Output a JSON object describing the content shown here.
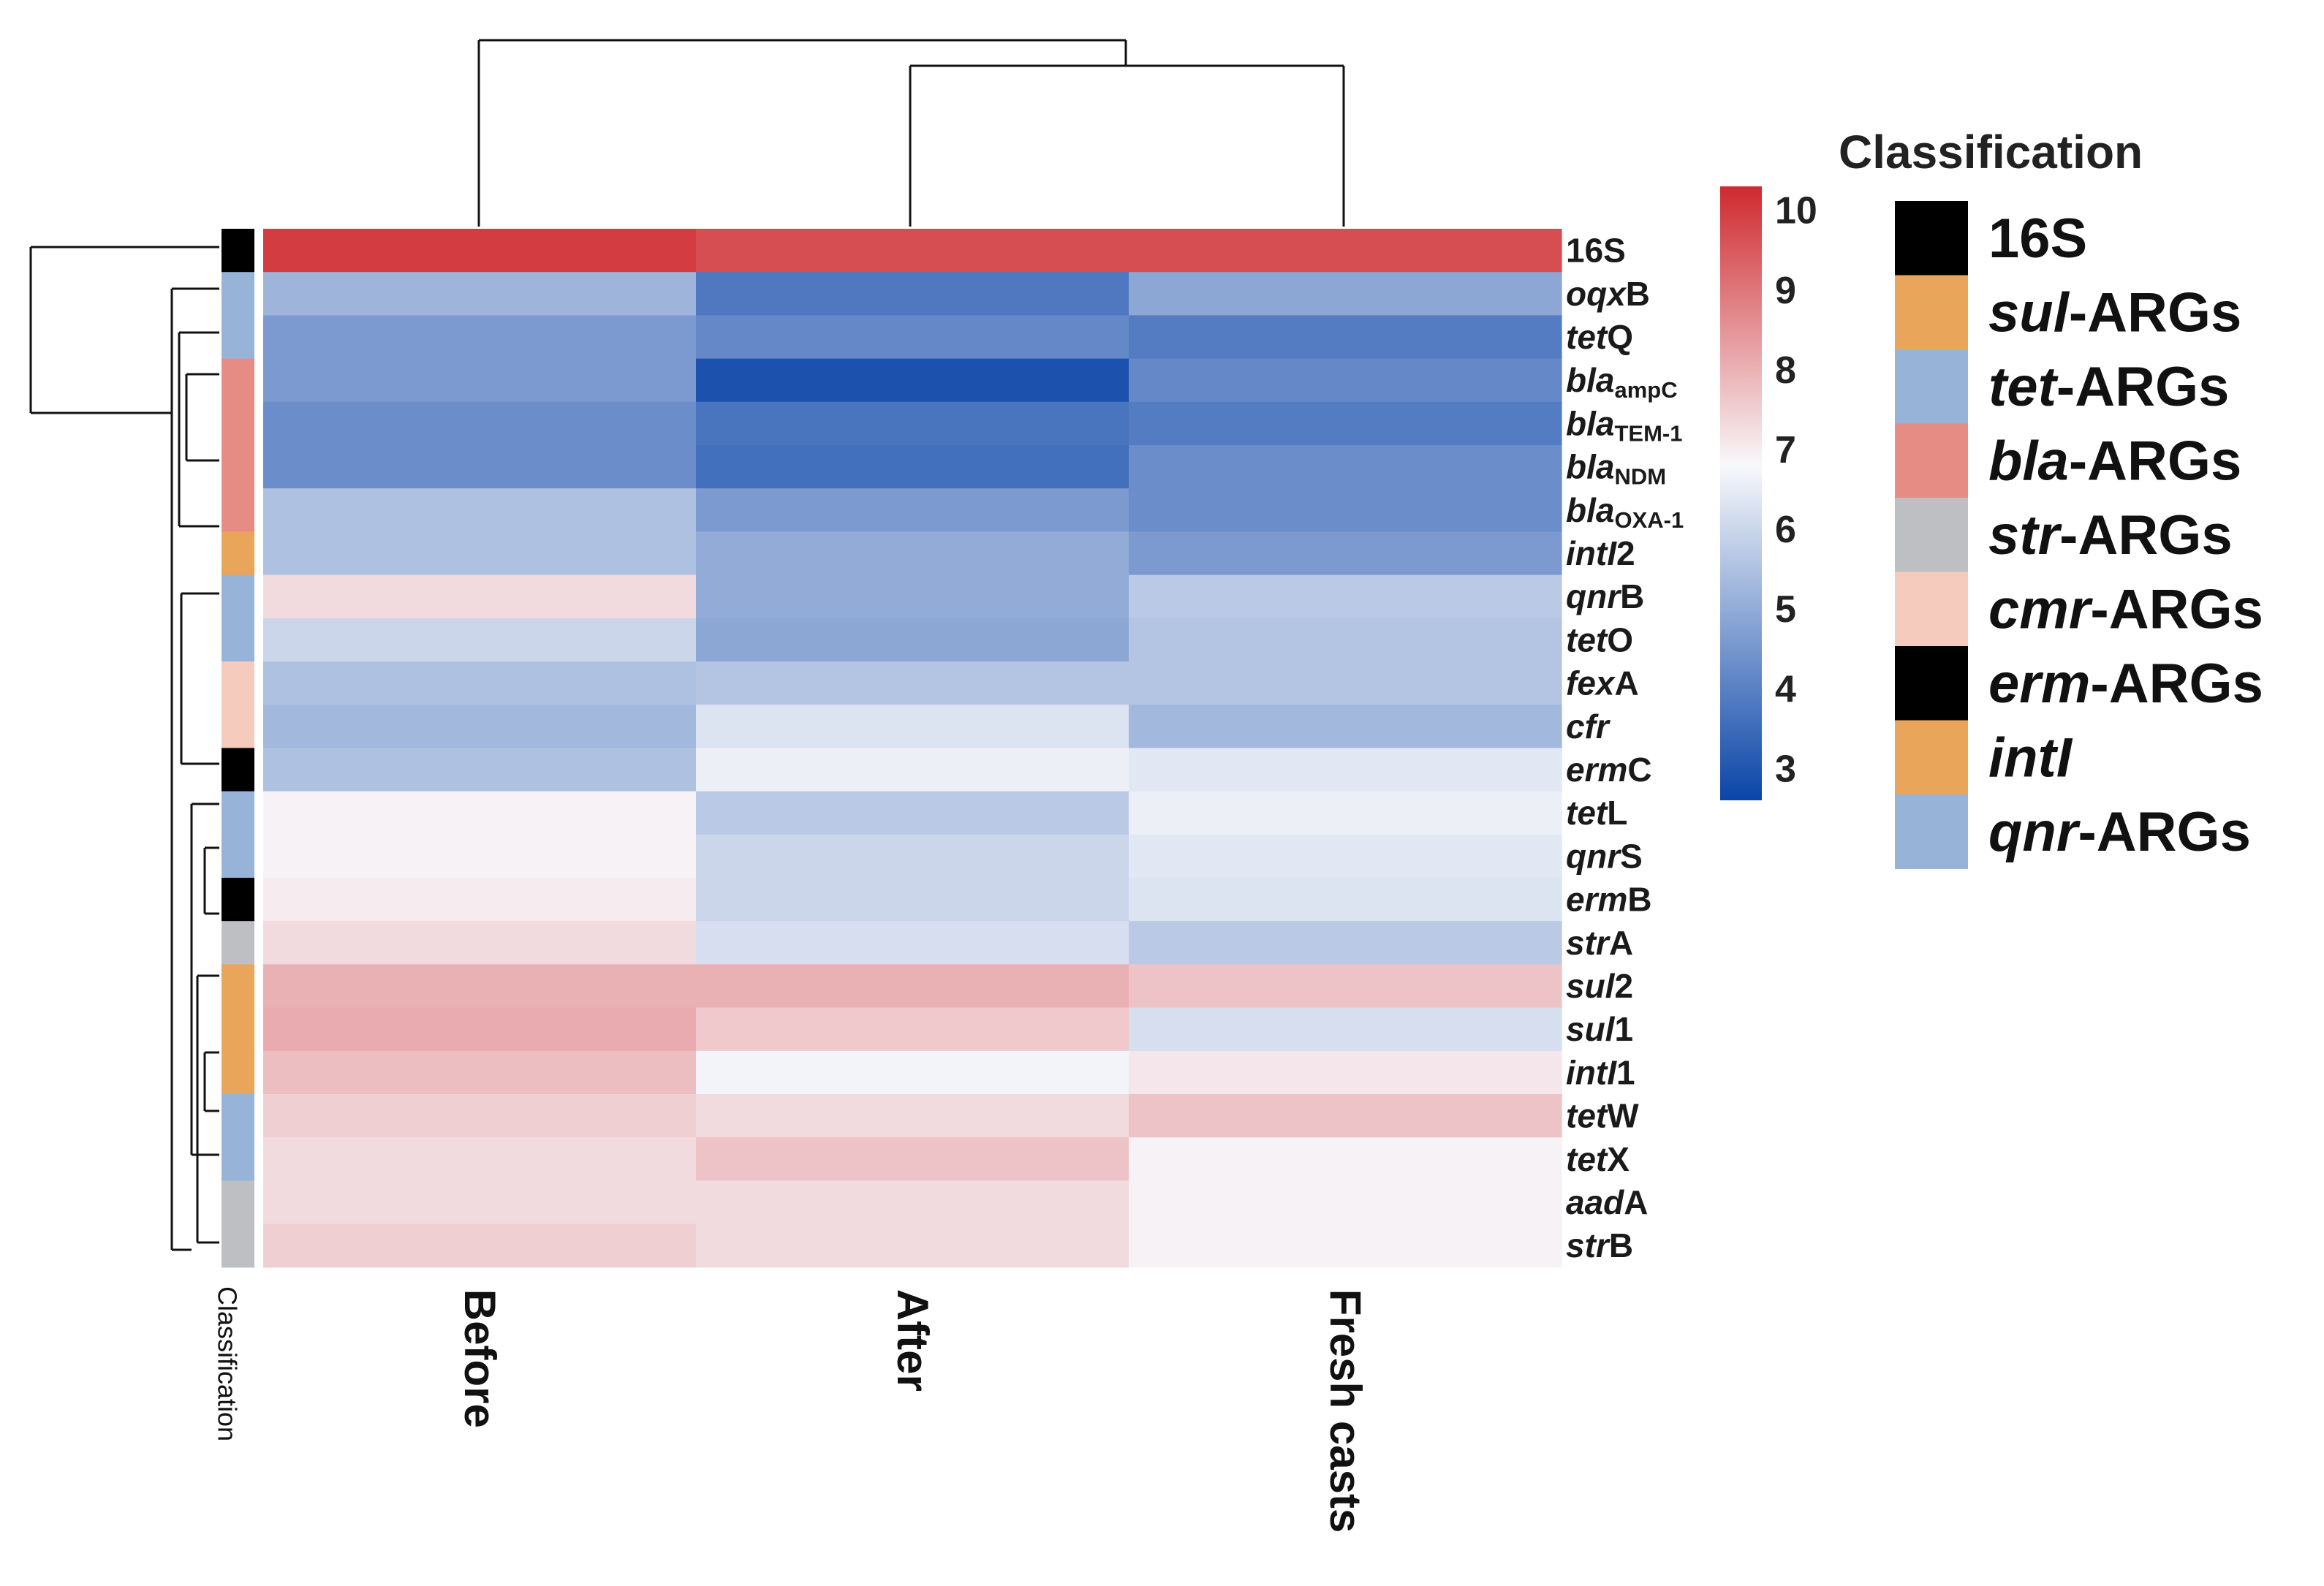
{
  "chart_data": {
    "type": "heatmap",
    "title": "",
    "columns": [
      "Before",
      "After",
      "Fresh casts"
    ],
    "rows": [
      {
        "parts": [
          {
            "t": "16S",
            "s": "b"
          }
        ],
        "class": "16S",
        "values": [
          10.0,
          9.7,
          9.7
        ]
      },
      {
        "parts": [
          {
            "t": "oqx",
            "s": "bi"
          },
          {
            "t": "B",
            "s": "b"
          }
        ],
        "class": "qnr-ARGs",
        "values": [
          5.2,
          3.8,
          4.9
        ]
      },
      {
        "parts": [
          {
            "t": "tet",
            "s": "bi"
          },
          {
            "t": "Q",
            "s": "b"
          }
        ],
        "class": "tet-ARGs",
        "values": [
          4.6,
          4.2,
          3.9
        ]
      },
      {
        "parts": [
          {
            "t": "bla",
            "s": "bi"
          },
          {
            "t": "ampC",
            "s": "sub"
          }
        ],
        "class": "bla-ARGs",
        "values": [
          4.6,
          2.9,
          4.2
        ]
      },
      {
        "parts": [
          {
            "t": "bla",
            "s": "bi"
          },
          {
            "t": "TEM-1",
            "s": "sub"
          }
        ],
        "class": "bla-ARGs",
        "values": [
          4.3,
          3.7,
          3.9
        ]
      },
      {
        "parts": [
          {
            "t": "bla",
            "s": "bi"
          },
          {
            "t": "NDM",
            "s": "sub"
          }
        ],
        "class": "bla-ARGs",
        "values": [
          4.3,
          3.6,
          4.3
        ]
      },
      {
        "parts": [
          {
            "t": "bla",
            "s": "bi"
          },
          {
            "t": "OXA-1",
            "s": "sub"
          }
        ],
        "class": "bla-ARGs",
        "values": [
          5.5,
          4.6,
          4.3
        ]
      },
      {
        "parts": [
          {
            "t": "intI",
            "s": "bi"
          },
          {
            "t": "2",
            "s": "b"
          }
        ],
        "class": "intI",
        "values": [
          5.5,
          5.0,
          4.6
        ]
      },
      {
        "parts": [
          {
            "t": "qnr",
            "s": "bi"
          },
          {
            "t": "B",
            "s": "b"
          }
        ],
        "class": "qnr-ARGs",
        "values": [
          7.3,
          5.0,
          5.7
        ]
      },
      {
        "parts": [
          {
            "t": "tet",
            "s": "bi"
          },
          {
            "t": "O",
            "s": "b"
          }
        ],
        "class": "tet-ARGs",
        "values": [
          6.0,
          4.9,
          5.6
        ]
      },
      {
        "parts": [
          {
            "t": "fex",
            "s": "bi"
          },
          {
            "t": "A",
            "s": "b"
          }
        ],
        "class": "cmr-ARGs",
        "values": [
          5.5,
          5.6,
          5.6
        ]
      },
      {
        "parts": [
          {
            "t": "cfr",
            "s": "bi"
          }
        ],
        "class": "cmr-ARGs",
        "values": [
          5.3,
          6.3,
          5.3
        ]
      },
      {
        "parts": [
          {
            "t": "erm",
            "s": "bi"
          },
          {
            "t": "C",
            "s": "b"
          }
        ],
        "class": "erm-ARGs",
        "values": [
          5.5,
          6.6,
          6.4
        ]
      },
      {
        "parts": [
          {
            "t": "tet",
            "s": "bi"
          },
          {
            "t": "L",
            "s": "b"
          }
        ],
        "class": "tet-ARGs",
        "values": [
          6.9,
          5.7,
          6.6
        ]
      },
      {
        "parts": [
          {
            "t": "qnr",
            "s": "bi"
          },
          {
            "t": "S",
            "s": "b"
          }
        ],
        "class": "qnr-ARGs",
        "values": [
          6.9,
          6.0,
          6.4
        ]
      },
      {
        "parts": [
          {
            "t": "erm",
            "s": "bi"
          },
          {
            "t": "B",
            "s": "b"
          }
        ],
        "class": "erm-ARGs",
        "values": [
          7.0,
          6.0,
          6.3
        ]
      },
      {
        "parts": [
          {
            "t": "str",
            "s": "bi"
          },
          {
            "t": "A",
            "s": "b"
          }
        ],
        "class": "str-ARGs",
        "values": [
          7.3,
          6.2,
          5.7
        ]
      },
      {
        "parts": [
          {
            "t": "sul",
            "s": "bi"
          },
          {
            "t": "2",
            "s": "b"
          }
        ],
        "class": "sul-ARGs",
        "values": [
          8.0,
          8.0,
          7.7
        ]
      },
      {
        "parts": [
          {
            "t": "sul",
            "s": "bi"
          },
          {
            "t": "1",
            "s": "b"
          }
        ],
        "class": "sul-ARGs",
        "values": [
          8.1,
          7.6,
          6.2
        ]
      },
      {
        "parts": [
          {
            "t": "intI",
            "s": "bi"
          },
          {
            "t": "1",
            "s": "b"
          }
        ],
        "class": "intI",
        "values": [
          7.8,
          6.7,
          7.1
        ]
      },
      {
        "parts": [
          {
            "t": "tet",
            "s": "bi"
          },
          {
            "t": "W",
            "s": "b"
          }
        ],
        "class": "tet-ARGs",
        "values": [
          7.5,
          7.3,
          7.7
        ]
      },
      {
        "parts": [
          {
            "t": "tet",
            "s": "bi"
          },
          {
            "t": "X",
            "s": "b"
          }
        ],
        "class": "tet-ARGs",
        "values": [
          7.3,
          7.7,
          6.9
        ]
      },
      {
        "parts": [
          {
            "t": "aad",
            "s": "bi"
          },
          {
            "t": "A",
            "s": "b"
          }
        ],
        "class": "str-ARGs",
        "values": [
          7.3,
          7.3,
          6.9
        ]
      },
      {
        "parts": [
          {
            "t": "str",
            "s": "bi"
          },
          {
            "t": "B",
            "s": "b"
          }
        ],
        "class": "str-ARGs",
        "values": [
          7.5,
          7.3,
          6.9
        ]
      }
    ],
    "scale": {
      "min": 2.6,
      "max": 10.3,
      "mid": 6.8,
      "ticks": [
        3,
        4,
        5,
        6,
        7,
        8,
        9,
        10
      ],
      "low_color": "#0b45a8",
      "mid_color": "#f8f8fb",
      "high_color": "#cf2a2f"
    },
    "classification_label": "Classification",
    "legend": {
      "title": "Classification",
      "entries": [
        {
          "parts": [
            {
              "t": "16S",
              "s": "b"
            }
          ],
          "color": "#000000"
        },
        {
          "parts": [
            {
              "t": "sul",
              "s": "bi"
            },
            {
              "t": "-ARGs",
              "s": "b"
            }
          ],
          "color": "#e9a65a"
        },
        {
          "parts": [
            {
              "t": "tet",
              "s": "bi"
            },
            {
              "t": "-ARGs",
              "s": "b"
            }
          ],
          "color": "#98b3d8"
        },
        {
          "parts": [
            {
              "t": "bla",
              "s": "bi"
            },
            {
              "t": "-ARGs",
              "s": "b"
            }
          ],
          "color": "#e78c85"
        },
        {
          "parts": [
            {
              "t": "str",
              "s": "bi"
            },
            {
              "t": "-ARGs",
              "s": "b"
            }
          ],
          "color": "#bdbfc2"
        },
        {
          "parts": [
            {
              "t": "cmr",
              "s": "bi"
            },
            {
              "t": "-ARGs",
              "s": "b"
            }
          ],
          "color": "#f5cbbd"
        },
        {
          "parts": [
            {
              "t": "erm",
              "s": "bi"
            },
            {
              "t": "-ARGs",
              "s": "b"
            }
          ],
          "color": "#000000"
        },
        {
          "parts": [
            {
              "t": "intI",
              "s": "bi"
            }
          ],
          "color": "#e9a65a"
        },
        {
          "parts": [
            {
              "t": "qnr",
              "s": "bi"
            },
            {
              "t": "-ARGs",
              "s": "b"
            }
          ],
          "color": "#98b3d8"
        }
      ]
    }
  }
}
